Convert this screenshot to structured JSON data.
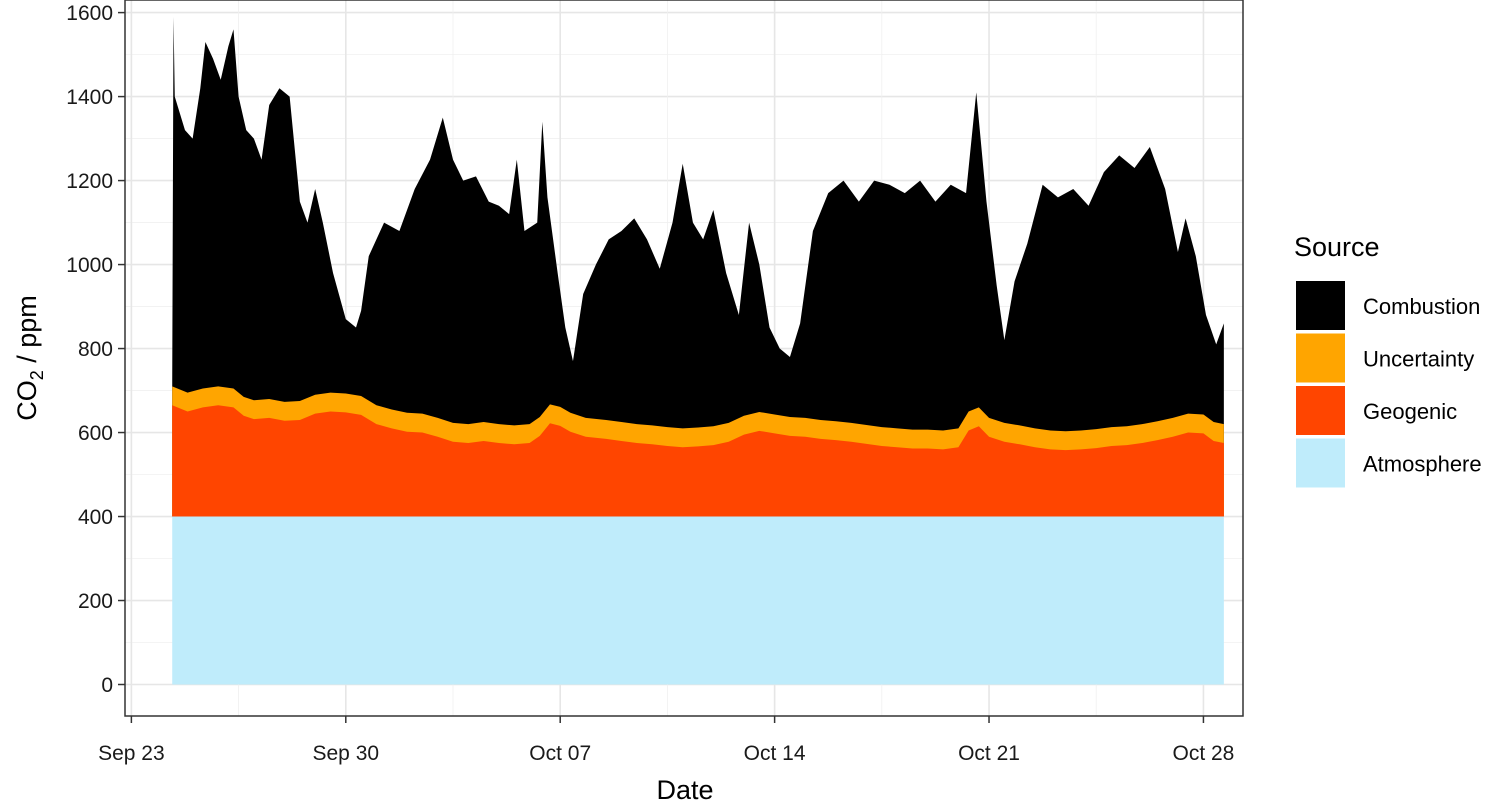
{
  "chart_data": {
    "type": "area",
    "stacked": true,
    "xlabel": "Date",
    "ylabel": {
      "base": "CO",
      "subscript": "2",
      "suffix": " / ppm"
    },
    "ylim": [
      -75,
      1630
    ],
    "xlim": [
      "2018-09-22T19:00",
      "2018-10-29T07:00"
    ],
    "x_tick_labels": [
      "Sep 23",
      "Sep 30",
      "Oct 07",
      "Oct 14",
      "Oct 21",
      "Oct 28"
    ],
    "x_ticks": [
      "2018-09-23",
      "2018-09-30",
      "2018-10-07",
      "2018-10-14",
      "2018-10-21",
      "2018-10-28"
    ],
    "y_ticks": [
      0,
      200,
      400,
      600,
      800,
      1000,
      1200,
      1400,
      1600
    ],
    "y_tick_labels": [
      "0",
      "200",
      "400",
      "600",
      "800",
      "1000",
      "1200",
      "1400",
      "1600"
    ],
    "grid": true,
    "legend": {
      "title": "Source",
      "position": "right",
      "entries": [
        "Combustion",
        "Uncertainty",
        "Geogenic",
        "Atmosphere"
      ]
    },
    "series": [
      {
        "name": "Atmosphere",
        "color": "#BFECFB",
        "kind": "constant_top",
        "value": 400,
        "x": [
          "2018-09-24T08:00",
          "2018-10-28T16:00"
        ]
      },
      {
        "name": "Geogenic",
        "color": "#FF4500",
        "kind": "stacked_top",
        "points": [
          [
            "2018-09-24T08:00",
            665
          ],
          [
            "2018-09-24T20:00",
            650
          ],
          [
            "2018-09-25T08:00",
            660
          ],
          [
            "2018-09-25T20:00",
            665
          ],
          [
            "2018-09-26T08:00",
            660
          ],
          [
            "2018-09-26T16:00",
            640
          ],
          [
            "2018-09-27T00:00",
            632
          ],
          [
            "2018-09-27T12:00",
            635
          ],
          [
            "2018-09-28T00:00",
            628
          ],
          [
            "2018-09-28T12:00",
            630
          ],
          [
            "2018-09-29T00:00",
            645
          ],
          [
            "2018-09-29T12:00",
            650
          ],
          [
            "2018-09-30T00:00",
            648
          ],
          [
            "2018-09-30T12:00",
            642
          ],
          [
            "2018-10-01T00:00",
            620
          ],
          [
            "2018-10-01T12:00",
            610
          ],
          [
            "2018-10-02T00:00",
            602
          ],
          [
            "2018-10-02T12:00",
            600
          ],
          [
            "2018-10-03T00:00",
            590
          ],
          [
            "2018-10-03T12:00",
            578
          ],
          [
            "2018-10-04T00:00",
            575
          ],
          [
            "2018-10-04T12:00",
            580
          ],
          [
            "2018-10-05T00:00",
            575
          ],
          [
            "2018-10-05T12:00",
            572
          ],
          [
            "2018-10-06T00:00",
            575
          ],
          [
            "2018-10-06T08:00",
            592
          ],
          [
            "2018-10-06T16:00",
            622
          ],
          [
            "2018-10-07T00:00",
            616
          ],
          [
            "2018-10-07T08:00",
            602
          ],
          [
            "2018-10-07T20:00",
            590
          ],
          [
            "2018-10-08T12:00",
            585
          ],
          [
            "2018-10-09T00:00",
            580
          ],
          [
            "2018-10-09T12:00",
            575
          ],
          [
            "2018-10-10T00:00",
            572
          ],
          [
            "2018-10-10T12:00",
            568
          ],
          [
            "2018-10-11T00:00",
            565
          ],
          [
            "2018-10-11T12:00",
            567
          ],
          [
            "2018-10-12T00:00",
            570
          ],
          [
            "2018-10-12T12:00",
            578
          ],
          [
            "2018-10-13T00:00",
            595
          ],
          [
            "2018-10-13T12:00",
            604
          ],
          [
            "2018-10-14T00:00",
            598
          ],
          [
            "2018-10-14T12:00",
            592
          ],
          [
            "2018-10-15T00:00",
            590
          ],
          [
            "2018-10-15T12:00",
            585
          ],
          [
            "2018-10-16T00:00",
            582
          ],
          [
            "2018-10-16T12:00",
            578
          ],
          [
            "2018-10-17T00:00",
            573
          ],
          [
            "2018-10-17T12:00",
            568
          ],
          [
            "2018-10-18T00:00",
            565
          ],
          [
            "2018-10-18T12:00",
            562
          ],
          [
            "2018-10-19T00:00",
            562
          ],
          [
            "2018-10-19T12:00",
            560
          ],
          [
            "2018-10-20T00:00",
            565
          ],
          [
            "2018-10-20T08:00",
            605
          ],
          [
            "2018-10-20T16:00",
            615
          ],
          [
            "2018-10-21T00:00",
            590
          ],
          [
            "2018-10-21T12:00",
            578
          ],
          [
            "2018-10-22T00:00",
            572
          ],
          [
            "2018-10-22T12:00",
            565
          ],
          [
            "2018-10-23T00:00",
            560
          ],
          [
            "2018-10-23T12:00",
            558
          ],
          [
            "2018-10-24T00:00",
            560
          ],
          [
            "2018-10-24T12:00",
            563
          ],
          [
            "2018-10-25T00:00",
            568
          ],
          [
            "2018-10-25T12:00",
            570
          ],
          [
            "2018-10-26T00:00",
            575
          ],
          [
            "2018-10-26T12:00",
            582
          ],
          [
            "2018-10-27T00:00",
            590
          ],
          [
            "2018-10-27T12:00",
            600
          ],
          [
            "2018-10-28T00:00",
            598
          ],
          [
            "2018-10-28T08:00",
            580
          ],
          [
            "2018-10-28T16:00",
            575
          ]
        ]
      },
      {
        "name": "Uncertainty",
        "color": "#FFA500",
        "kind": "offset_above_previous",
        "value": 45
      },
      {
        "name": "Combustion",
        "color": "#000000",
        "kind": "stacked_top",
        "points": [
          [
            "2018-09-24T08:00",
            720
          ],
          [
            "2018-09-24T09:00",
            1590
          ],
          [
            "2018-09-24T10:00",
            1400
          ],
          [
            "2018-09-24T18:00",
            1320
          ],
          [
            "2018-09-25T00:00",
            1300
          ],
          [
            "2018-09-25T06:00",
            1420
          ],
          [
            "2018-09-25T10:00",
            1530
          ],
          [
            "2018-09-25T16:00",
            1490
          ],
          [
            "2018-09-25T22:00",
            1440
          ],
          [
            "2018-09-26T04:00",
            1520
          ],
          [
            "2018-09-26T08:00",
            1560
          ],
          [
            "2018-09-26T12:00",
            1400
          ],
          [
            "2018-09-26T18:00",
            1320
          ],
          [
            "2018-09-27T00:00",
            1300
          ],
          [
            "2018-09-27T06:00",
            1250
          ],
          [
            "2018-09-27T12:00",
            1380
          ],
          [
            "2018-09-27T20:00",
            1420
          ],
          [
            "2018-09-28T04:00",
            1400
          ],
          [
            "2018-09-28T12:00",
            1150
          ],
          [
            "2018-09-28T18:00",
            1100
          ],
          [
            "2018-09-29T00:00",
            1180
          ],
          [
            "2018-09-29T06:00",
            1100
          ],
          [
            "2018-09-29T14:00",
            980
          ],
          [
            "2018-09-30T00:00",
            870
          ],
          [
            "2018-09-30T08:00",
            850
          ],
          [
            "2018-09-30T12:00",
            890
          ],
          [
            "2018-09-30T18:00",
            1020
          ],
          [
            "2018-10-01T06:00",
            1100
          ],
          [
            "2018-10-01T18:00",
            1080
          ],
          [
            "2018-10-02T06:00",
            1180
          ],
          [
            "2018-10-02T18:00",
            1250
          ],
          [
            "2018-10-03T04:00",
            1350
          ],
          [
            "2018-10-03T12:00",
            1250
          ],
          [
            "2018-10-03T20:00",
            1200
          ],
          [
            "2018-10-04T06:00",
            1210
          ],
          [
            "2018-10-04T16:00",
            1150
          ],
          [
            "2018-10-05T00:00",
            1140
          ],
          [
            "2018-10-05T08:00",
            1120
          ],
          [
            "2018-10-05T14:00",
            1250
          ],
          [
            "2018-10-05T20:00",
            1080
          ],
          [
            "2018-10-06T06:00",
            1100
          ],
          [
            "2018-10-06T10:00",
            1340
          ],
          [
            "2018-10-06T14:00",
            1160
          ],
          [
            "2018-10-06T22:00",
            980
          ],
          [
            "2018-10-07T04:00",
            850
          ],
          [
            "2018-10-07T10:00",
            770
          ],
          [
            "2018-10-07T18:00",
            930
          ],
          [
            "2018-10-08T04:00",
            1000
          ],
          [
            "2018-10-08T14:00",
            1060
          ],
          [
            "2018-10-09T00:00",
            1080
          ],
          [
            "2018-10-09T10:00",
            1110
          ],
          [
            "2018-10-09T20:00",
            1060
          ],
          [
            "2018-10-10T06:00",
            990
          ],
          [
            "2018-10-10T16:00",
            1100
          ],
          [
            "2018-10-11T00:00",
            1240
          ],
          [
            "2018-10-11T08:00",
            1100
          ],
          [
            "2018-10-11T16:00",
            1060
          ],
          [
            "2018-10-12T00:00",
            1130
          ],
          [
            "2018-10-12T10:00",
            980
          ],
          [
            "2018-10-12T20:00",
            880
          ],
          [
            "2018-10-13T04:00",
            1100
          ],
          [
            "2018-10-13T12:00",
            1000
          ],
          [
            "2018-10-13T20:00",
            850
          ],
          [
            "2018-10-14T04:00",
            800
          ],
          [
            "2018-10-14T12:00",
            780
          ],
          [
            "2018-10-14T20:00",
            860
          ],
          [
            "2018-10-15T06:00",
            1080
          ],
          [
            "2018-10-15T18:00",
            1170
          ],
          [
            "2018-10-16T06:00",
            1200
          ],
          [
            "2018-10-16T18:00",
            1150
          ],
          [
            "2018-10-17T06:00",
            1200
          ],
          [
            "2018-10-17T18:00",
            1190
          ],
          [
            "2018-10-18T06:00",
            1170
          ],
          [
            "2018-10-18T18:00",
            1200
          ],
          [
            "2018-10-19T06:00",
            1150
          ],
          [
            "2018-10-19T18:00",
            1190
          ],
          [
            "2018-10-20T06:00",
            1170
          ],
          [
            "2018-10-20T14:00",
            1410
          ],
          [
            "2018-10-20T22:00",
            1150
          ],
          [
            "2018-10-21T06:00",
            950
          ],
          [
            "2018-10-21T12:00",
            820
          ],
          [
            "2018-10-21T20:00",
            960
          ],
          [
            "2018-10-22T06:00",
            1050
          ],
          [
            "2018-10-22T18:00",
            1190
          ],
          [
            "2018-10-23T06:00",
            1160
          ],
          [
            "2018-10-23T18:00",
            1180
          ],
          [
            "2018-10-24T06:00",
            1140
          ],
          [
            "2018-10-24T18:00",
            1220
          ],
          [
            "2018-10-25T06:00",
            1260
          ],
          [
            "2018-10-25T18:00",
            1230
          ],
          [
            "2018-10-26T06:00",
            1280
          ],
          [
            "2018-10-26T18:00",
            1180
          ],
          [
            "2018-10-27T04:00",
            1030
          ],
          [
            "2018-10-27T10:00",
            1110
          ],
          [
            "2018-10-27T18:00",
            1020
          ],
          [
            "2018-10-28T02:00",
            880
          ],
          [
            "2018-10-28T10:00",
            810
          ],
          [
            "2018-10-28T16:00",
            860
          ]
        ]
      }
    ]
  }
}
